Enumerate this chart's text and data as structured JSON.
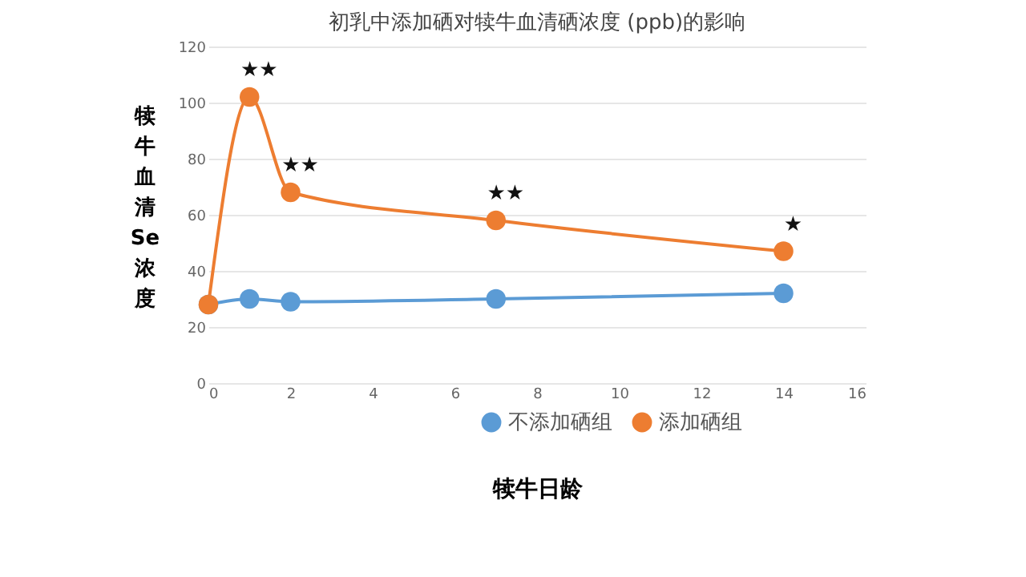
{
  "chart_data": {
    "type": "line",
    "title": "初乳中添加硒对犊牛血清硒浓度 (ppb)的影响",
    "xlabel": "犊牛日龄",
    "ylabel": "犊牛血清Se浓度",
    "x": [
      0,
      1,
      2,
      7,
      14
    ],
    "series": [
      {
        "name": "不添加硒组",
        "color": "#5b9bd5",
        "values": [
          28,
          30,
          29,
          30,
          32
        ]
      },
      {
        "name": "添加硒组",
        "color": "#ed7d31",
        "values": [
          28,
          102,
          68,
          58,
          47
        ]
      }
    ],
    "xlim": [
      0,
      16
    ],
    "xticks": [
      0,
      2,
      4,
      6,
      8,
      10,
      12,
      14,
      16
    ],
    "ylim": [
      0,
      120
    ],
    "yticks": [
      0,
      20,
      40,
      60,
      80,
      100,
      120
    ],
    "annotations": [
      {
        "text": "★★",
        "x": 1,
        "y": 102
      },
      {
        "text": "★★",
        "x": 2,
        "y": 68
      },
      {
        "text": "★★",
        "x": 7,
        "y": 58
      },
      {
        "text": "★",
        "x": 14,
        "y": 47
      }
    ],
    "grid": "y",
    "legend": "bottom",
    "marker": "circle",
    "line_style": "solid"
  }
}
